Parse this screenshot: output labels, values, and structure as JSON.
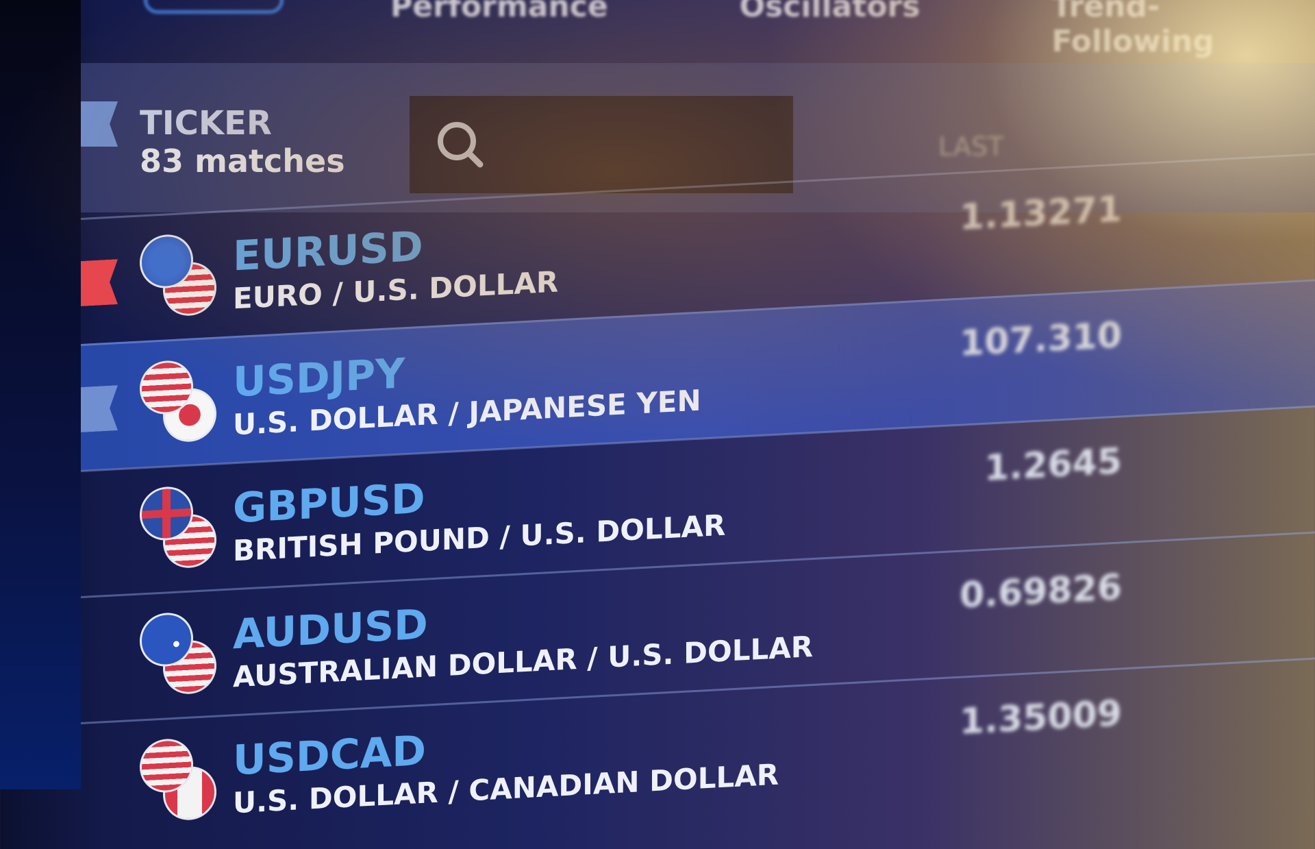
{
  "tabs": [
    "Performance",
    "Oscillators",
    "Trend-Following"
  ],
  "ticker": {
    "label": "TICKER",
    "matches": "83 matches"
  },
  "columns": {
    "last": "LAST"
  },
  "rows": [
    {
      "symbol": "EURUSD",
      "name": "EURO / U.S. DOLLAR",
      "last": "1.13271"
    },
    {
      "symbol": "USDJPY",
      "name": "U.S. DOLLAR / JAPANESE YEN",
      "last": "107.310"
    },
    {
      "symbol": "GBPUSD",
      "name": "BRITISH POUND / U.S. DOLLAR",
      "last": "1.2645"
    },
    {
      "symbol": "AUDUSD",
      "name": "AUSTRALIAN DOLLAR / U.S. DOLLAR",
      "last": "0.69826"
    },
    {
      "symbol": "USDCAD",
      "name": "U.S. DOLLAR / CANADIAN DOLLAR",
      "last": "1.35009"
    }
  ]
}
